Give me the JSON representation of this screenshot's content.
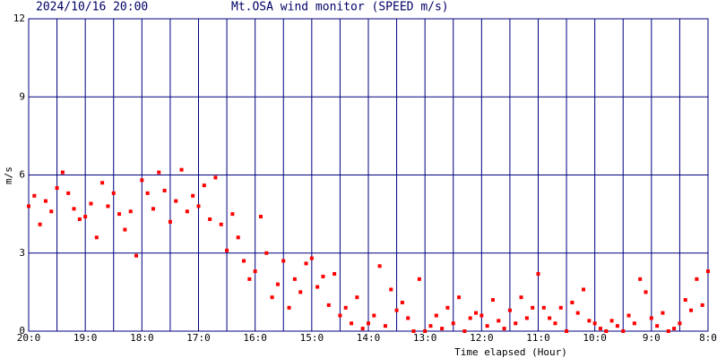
{
  "chart_data": {
    "type": "scatter",
    "title": "Mt.OSA wind monitor (SPEED m/s)",
    "subtitle": "2024/10/16 20:00",
    "ylabel": "m/s",
    "xlabel": "Time elapsed (Hour)",
    "xlim": [
      0,
      12
    ],
    "ylim": [
      0,
      12
    ],
    "yticks": [
      0,
      3,
      6,
      9,
      12
    ],
    "xticks": [
      {
        "value": 0,
        "label": "20:0"
      },
      {
        "value": 1,
        "label": "19:0"
      },
      {
        "value": 2,
        "label": "18:0"
      },
      {
        "value": 3,
        "label": "17:0"
      },
      {
        "value": 4,
        "label": "16:0"
      },
      {
        "value": 5,
        "label": "15:0"
      },
      {
        "value": 6,
        "label": "14:0"
      },
      {
        "value": 7,
        "label": "13:0"
      },
      {
        "value": 8,
        "label": "12:0"
      },
      {
        "value": 9,
        "label": "11:0"
      },
      {
        "value": 10,
        "label": "10:0"
      },
      {
        "value": 11,
        "label": "9:0"
      },
      {
        "value": 12,
        "label": "8:0"
      }
    ],
    "xminorticks": [
      0.5,
      1.5,
      2.5,
      3.5,
      4.5,
      5.5,
      6.5,
      7.5,
      8.5,
      9.5,
      10.5,
      11.5
    ],
    "grid": true,
    "grid_color": "#000080",
    "series": [
      {
        "color": "#ff0000",
        "x": [
          0,
          0.1,
          0.2,
          0.3,
          0.4,
          0.5,
          0.6,
          0.7,
          0.8,
          0.9,
          1,
          1.1,
          1.2,
          1.3,
          1.4,
          1.5,
          1.6,
          1.7,
          1.8,
          1.9,
          2,
          2.1,
          2.2,
          2.3,
          2.4,
          2.5,
          2.6,
          2.7,
          2.8,
          2.9,
          3,
          3.1,
          3.2,
          3.3,
          3.4,
          3.5,
          3.6,
          3.7,
          3.8,
          3.9,
          4,
          4.1,
          4.2,
          4.3,
          4.4,
          4.5,
          4.6,
          4.7,
          4.8,
          4.9,
          5,
          5.1,
          5.2,
          5.3,
          5.4,
          5.5,
          5.6,
          5.7,
          5.8,
          5.9,
          6,
          6.1,
          6.2,
          6.3,
          6.4,
          6.5,
          6.6,
          6.7,
          6.8,
          6.9,
          7,
          7.1,
          7.2,
          7.3,
          7.4,
          7.5,
          7.6,
          7.7,
          7.8,
          7.9,
          8,
          8.1,
          8.2,
          8.3,
          8.4,
          8.5,
          8.6,
          8.7,
          8.8,
          8.9,
          9,
          9.1,
          9.2,
          9.3,
          9.4,
          9.5,
          9.6,
          9.7,
          9.8,
          9.9,
          10,
          10.1,
          10.2,
          10.3,
          10.4,
          10.5,
          10.6,
          10.7,
          10.8,
          10.9,
          11,
          11.1,
          11.2,
          11.3,
          11.4,
          11.5,
          11.6,
          11.7,
          11.8,
          11.9,
          12
        ],
        "values": [
          4.8,
          5.2,
          4.1,
          5.0,
          4.6,
          5.5,
          6.1,
          5.3,
          4.7,
          4.3,
          4.4,
          4.9,
          3.6,
          5.7,
          4.8,
          5.3,
          4.5,
          3.9,
          4.6,
          2.9,
          5.8,
          5.3,
          4.7,
          6.1,
          5.4,
          4.2,
          5.0,
          6.2,
          4.6,
          5.2,
          4.8,
          5.6,
          4.3,
          5.9,
          4.1,
          3.1,
          4.5,
          3.6,
          2.7,
          2.0,
          2.3,
          4.4,
          3.0,
          1.3,
          1.8,
          2.7,
          0.9,
          2.0,
          1.5,
          2.6,
          2.8,
          1.7,
          2.1,
          1.0,
          2.2,
          0.6,
          0.9,
          0.3,
          1.3,
          0.1,
          0.3,
          0.6,
          2.5,
          0.2,
          1.6,
          0.8,
          1.1,
          0.5,
          0.0,
          2.0,
          0.0,
          0.2,
          0.6,
          0.1,
          0.9,
          0.3,
          1.3,
          0.0,
          0.5,
          0.7,
          0.6,
          0.2,
          1.2,
          0.4,
          0.1,
          0.8,
          0.3,
          1.3,
          0.5,
          0.9,
          2.2,
          0.9,
          0.5,
          0.3,
          0.9,
          0.0,
          1.1,
          0.7,
          1.6,
          0.4,
          0.3,
          0.1,
          0.0,
          0.4,
          0.2,
          0.0,
          0.6,
          0.3,
          2.0,
          1.5,
          0.5,
          0.2,
          0.7,
          0.0,
          0.1,
          0.3,
          1.2,
          0.8,
          2.0,
          1.0,
          2.3
        ]
      }
    ]
  }
}
